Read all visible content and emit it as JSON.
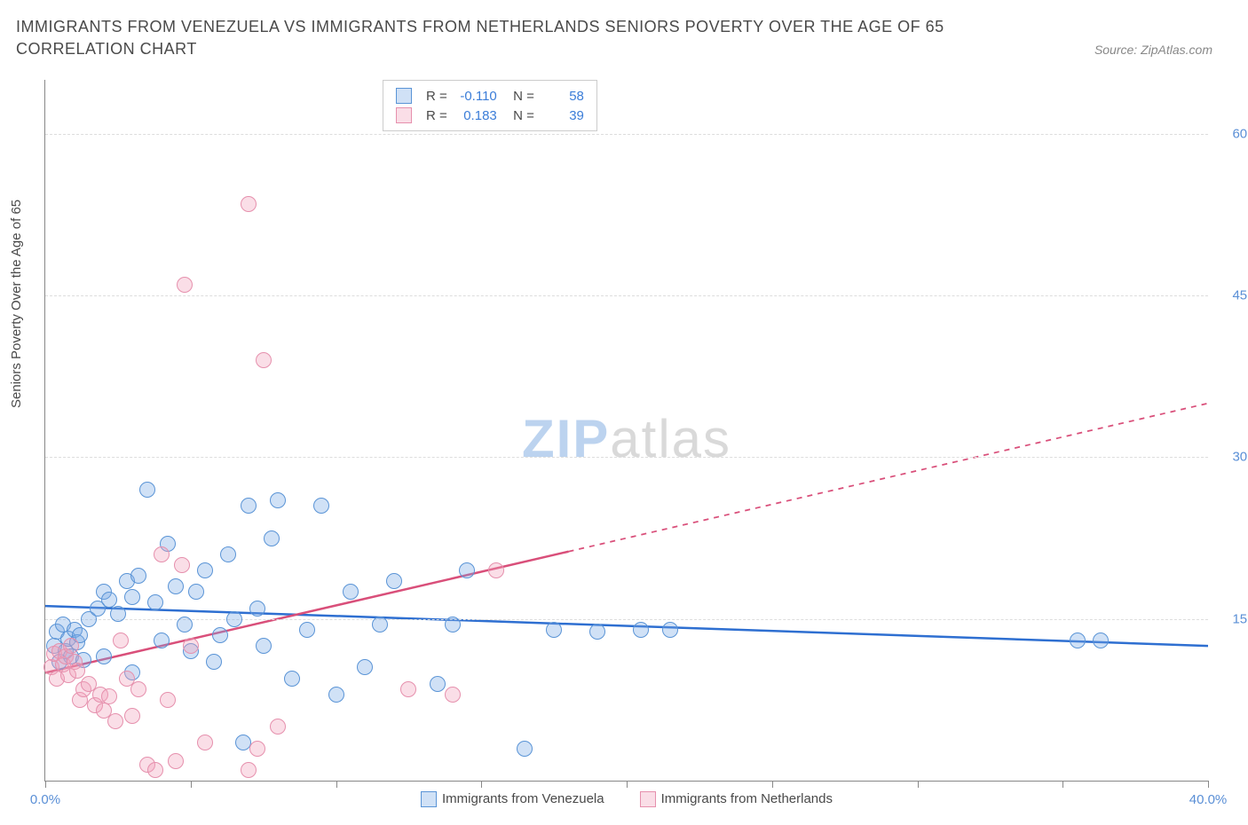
{
  "title": "IMMIGRANTS FROM VENEZUELA VS IMMIGRANTS FROM NETHERLANDS SENIORS POVERTY OVER THE AGE OF 65 CORRELATION CHART",
  "source": "Source: ZipAtlas.com",
  "ylabel": "Seniors Poverty Over the Age of 65",
  "watermark_zip": "ZIP",
  "watermark_atlas": "atlas",
  "chart": {
    "type": "scatter",
    "background_color": "#ffffff",
    "grid_color": "#dddddd",
    "axis_color": "#888888",
    "text_color": "#4a4a4a",
    "value_color": "#3b7dd8",
    "tick_label_color": "#5a8fd6",
    "xlim": [
      0,
      40
    ],
    "ylim": [
      0,
      65
    ],
    "x_ticks": [
      0,
      5,
      10,
      15,
      20,
      25,
      30,
      35,
      40
    ],
    "x_tick_labels": {
      "0": "0.0%",
      "40": "40.0%"
    },
    "y_ticks": [
      15,
      30,
      45,
      60
    ],
    "y_tick_labels": {
      "15": "15.0%",
      "30": "30.0%",
      "45": "45.0%",
      "60": "60.0%"
    },
    "marker_radius": 8,
    "marker_border_width": 1.5,
    "series": [
      {
        "name": "Immigrants from Venezuela",
        "fill_color": "rgba(120,170,230,0.35)",
        "border_color": "#5a94d6",
        "R": "-0.110",
        "N": "58",
        "trend": {
          "color": "#2e6fd1",
          "width": 2.5,
          "solid_from_x": 0,
          "solid_to_x": 40,
          "y_at_x0": 16.2,
          "y_at_x40": 12.5,
          "dashed_from_x": 40
        },
        "points": [
          [
            0.3,
            12.5
          ],
          [
            0.4,
            13.8
          ],
          [
            0.5,
            11.0
          ],
          [
            0.6,
            14.5
          ],
          [
            0.7,
            12.0
          ],
          [
            0.8,
            13.2
          ],
          [
            0.9,
            11.5
          ],
          [
            1.0,
            14.0
          ],
          [
            1.1,
            12.8
          ],
          [
            1.2,
            13.5
          ],
          [
            1.3,
            11.2
          ],
          [
            1.5,
            15.0
          ],
          [
            1.8,
            16.0
          ],
          [
            2.0,
            17.5
          ],
          [
            2.2,
            16.8
          ],
          [
            2.5,
            15.5
          ],
          [
            2.8,
            18.5
          ],
          [
            3.0,
            17.0
          ],
          [
            3.2,
            19.0
          ],
          [
            3.5,
            27.0
          ],
          [
            3.8,
            16.5
          ],
          [
            4.0,
            13.0
          ],
          [
            4.2,
            22.0
          ],
          [
            4.5,
            18.0
          ],
          [
            4.8,
            14.5
          ],
          [
            5.0,
            12.0
          ],
          [
            5.2,
            17.5
          ],
          [
            5.5,
            19.5
          ],
          [
            5.8,
            11.0
          ],
          [
            6.0,
            13.5
          ],
          [
            6.3,
            21.0
          ],
          [
            6.5,
            15.0
          ],
          [
            6.8,
            3.5
          ],
          [
            7.0,
            25.5
          ],
          [
            7.3,
            16.0
          ],
          [
            7.5,
            12.5
          ],
          [
            7.8,
            22.5
          ],
          [
            8.0,
            26.0
          ],
          [
            8.5,
            9.5
          ],
          [
            9.0,
            14.0
          ],
          [
            9.5,
            25.5
          ],
          [
            10.0,
            8.0
          ],
          [
            10.5,
            17.5
          ],
          [
            11.0,
            10.5
          ],
          [
            11.5,
            14.5
          ],
          [
            12.0,
            18.5
          ],
          [
            13.5,
            9.0
          ],
          [
            14.0,
            14.5
          ],
          [
            14.5,
            19.5
          ],
          [
            16.5,
            3.0
          ],
          [
            17.5,
            14.0
          ],
          [
            19.0,
            13.8
          ],
          [
            20.5,
            14.0
          ],
          [
            21.5,
            14.0
          ],
          [
            35.5,
            13.0
          ],
          [
            36.3,
            13.0
          ],
          [
            2.0,
            11.5
          ],
          [
            3.0,
            10.0
          ]
        ]
      },
      {
        "name": "Immigrants from Netherlands",
        "fill_color": "rgba(240,160,185,0.35)",
        "border_color": "#e690ad",
        "R": "0.183",
        "N": "39",
        "trend": {
          "color": "#d94f7a",
          "width": 2.5,
          "solid_from_x": 0,
          "solid_to_x": 18,
          "y_at_x0": 10.0,
          "y_at_x40": 35.0,
          "dashed_from_x": 18
        },
        "points": [
          [
            0.2,
            10.5
          ],
          [
            0.3,
            11.8
          ],
          [
            0.4,
            9.5
          ],
          [
            0.5,
            12.0
          ],
          [
            0.6,
            10.8
          ],
          [
            0.7,
            11.5
          ],
          [
            0.8,
            9.8
          ],
          [
            0.9,
            12.5
          ],
          [
            1.0,
            11.0
          ],
          [
            1.1,
            10.2
          ],
          [
            1.2,
            7.5
          ],
          [
            1.3,
            8.5
          ],
          [
            1.5,
            9.0
          ],
          [
            1.7,
            7.0
          ],
          [
            1.9,
            8.0
          ],
          [
            2.0,
            6.5
          ],
          [
            2.2,
            7.8
          ],
          [
            2.4,
            5.5
          ],
          [
            2.6,
            13.0
          ],
          [
            2.8,
            9.5
          ],
          [
            3.0,
            6.0
          ],
          [
            3.2,
            8.5
          ],
          [
            3.5,
            1.5
          ],
          [
            3.8,
            1.0
          ],
          [
            4.0,
            21.0
          ],
          [
            4.2,
            7.5
          ],
          [
            4.5,
            1.8
          ],
          [
            4.7,
            20.0
          ],
          [
            4.8,
            46.0
          ],
          [
            5.0,
            12.5
          ],
          [
            5.5,
            3.5
          ],
          [
            7.0,
            53.5
          ],
          [
            7.0,
            1.0
          ],
          [
            7.3,
            3.0
          ],
          [
            7.5,
            39.0
          ],
          [
            8.0,
            5.0
          ],
          [
            12.5,
            8.5
          ],
          [
            14.0,
            8.0
          ],
          [
            15.5,
            19.5
          ]
        ]
      }
    ],
    "bottom_legend": [
      {
        "label": "Immigrants from Venezuela",
        "fill": "rgba(120,170,230,0.35)",
        "border": "#5a94d6"
      },
      {
        "label": "Immigrants from Netherlands",
        "fill": "rgba(240,160,185,0.35)",
        "border": "#e690ad"
      }
    ]
  }
}
